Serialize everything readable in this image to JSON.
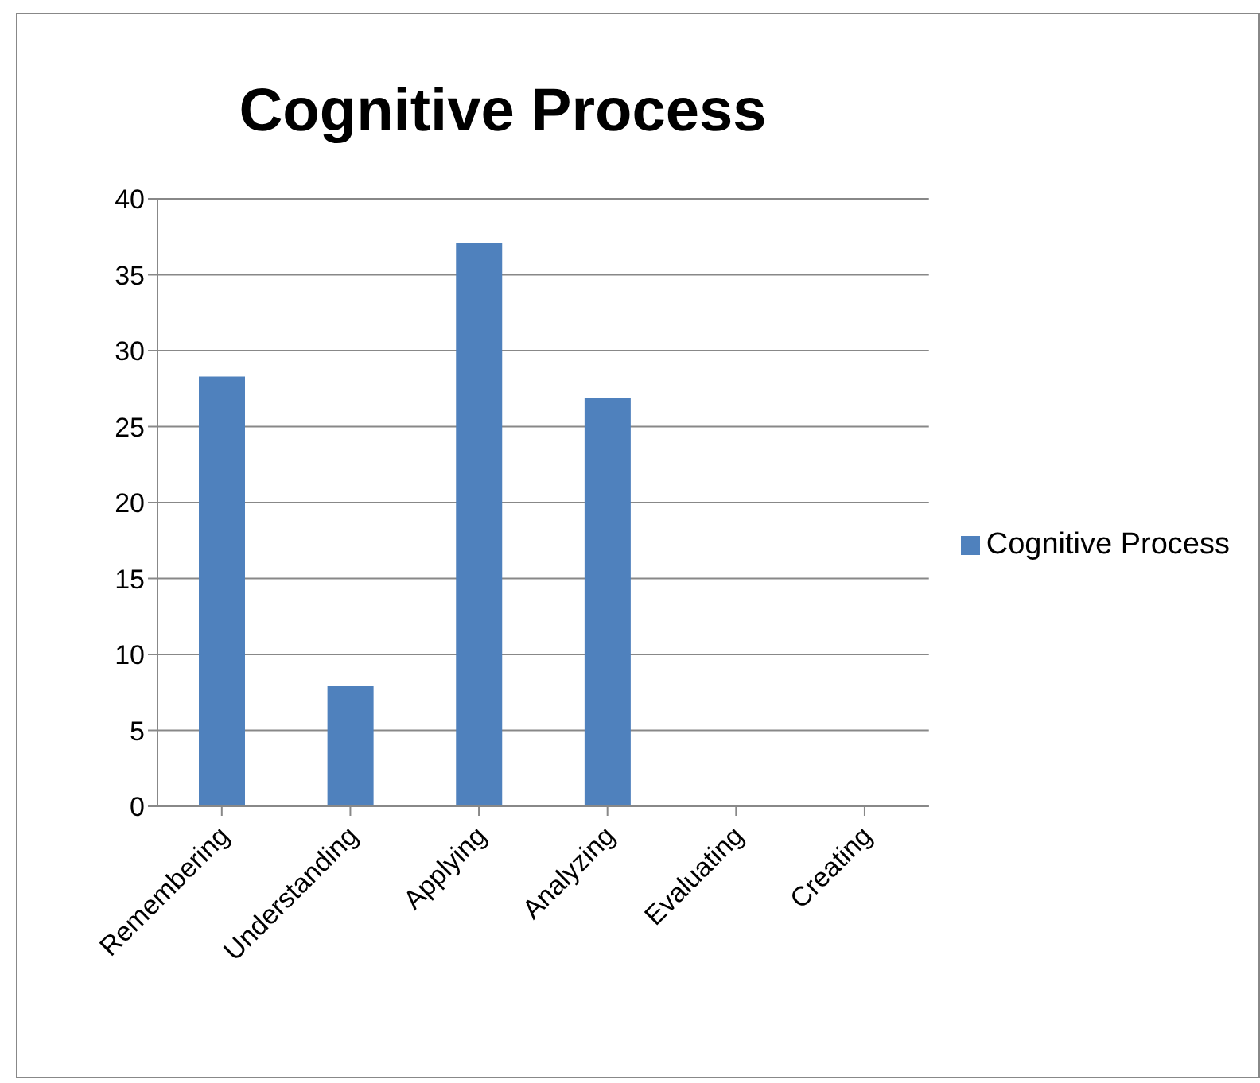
{
  "chart_data": {
    "type": "bar",
    "title": "Cognitive Process",
    "categories": [
      "Remembering",
      "Understanding",
      "Applying",
      "Analyzing",
      "Evaluating",
      "Creating"
    ],
    "series": [
      {
        "name": "Cognitive Process",
        "color": "#4f81bd",
        "values": [
          28.3,
          7.9,
          37.1,
          26.9,
          0,
          0
        ]
      }
    ],
    "ylim": [
      0,
      40
    ],
    "yticks": [
      0,
      5,
      10,
      15,
      20,
      25,
      30,
      35,
      40
    ],
    "grid": "y",
    "legend": "right"
  }
}
